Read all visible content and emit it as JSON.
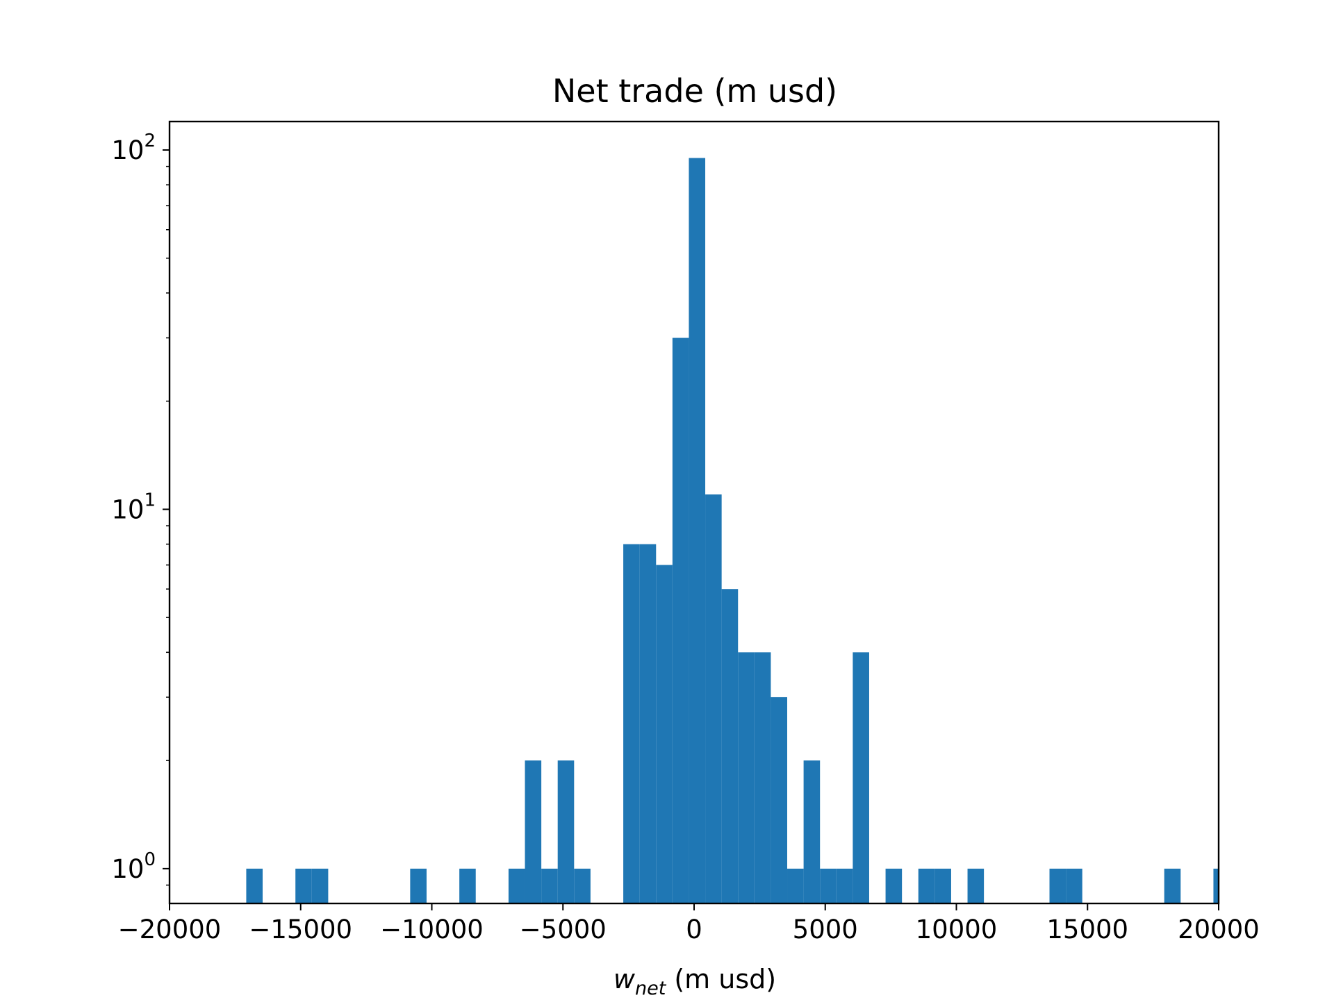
{
  "chart_data": {
    "type": "bar",
    "title": "Net trade (m usd)",
    "xlabel": {
      "symbol": "w",
      "subscript": "net",
      "rest": " (m usd)"
    },
    "ylabel": "",
    "yscale": "log",
    "xlim": [
      -20000,
      20000
    ],
    "ylim": [
      0.8,
      120
    ],
    "x_ticks": [
      {
        "value": -20000,
        "label": "−20000"
      },
      {
        "value": -15000,
        "label": "−15000"
      },
      {
        "value": -10000,
        "label": "−10000"
      },
      {
        "value": -5000,
        "label": "−5000"
      },
      {
        "value": 0,
        "label": "0"
      },
      {
        "value": 5000,
        "label": "5000"
      },
      {
        "value": 10000,
        "label": "10000"
      },
      {
        "value": 15000,
        "label": "15000"
      },
      {
        "value": 20000,
        "label": "20000"
      }
    ],
    "y_ticks": [
      {
        "value": 1,
        "base": "10",
        "exponent": "0"
      },
      {
        "value": 10,
        "base": "10",
        "exponent": "1"
      },
      {
        "value": 100,
        "base": "10",
        "exponent": "2"
      }
    ],
    "bin_width": 625,
    "bars": [
      {
        "x0": -17075,
        "count": 1
      },
      {
        "x0": -15200,
        "count": 1
      },
      {
        "x0": -14575,
        "count": 1
      },
      {
        "x0": -10825,
        "count": 1
      },
      {
        "x0": -8950,
        "count": 1
      },
      {
        "x0": -7075,
        "count": 1
      },
      {
        "x0": -6450,
        "count": 2
      },
      {
        "x0": -5825,
        "count": 1
      },
      {
        "x0": -5200,
        "count": 2
      },
      {
        "x0": -4575,
        "count": 1
      },
      {
        "x0": -2700,
        "count": 8
      },
      {
        "x0": -2075,
        "count": 8
      },
      {
        "x0": -1450,
        "count": 7
      },
      {
        "x0": -825,
        "count": 30
      },
      {
        "x0": -200,
        "count": 95
      },
      {
        "x0": 425,
        "count": 11
      },
      {
        "x0": 1050,
        "count": 6
      },
      {
        "x0": 1675,
        "count": 4
      },
      {
        "x0": 2300,
        "count": 4
      },
      {
        "x0": 2925,
        "count": 3
      },
      {
        "x0": 3550,
        "count": 1
      },
      {
        "x0": 4175,
        "count": 2
      },
      {
        "x0": 4800,
        "count": 1
      },
      {
        "x0": 5425,
        "count": 1
      },
      {
        "x0": 6050,
        "count": 4
      },
      {
        "x0": 7300,
        "count": 1
      },
      {
        "x0": 8550,
        "count": 1
      },
      {
        "x0": 9175,
        "count": 1
      },
      {
        "x0": 10425,
        "count": 1
      },
      {
        "x0": 13550,
        "count": 1
      },
      {
        "x0": 14175,
        "count": 1
      },
      {
        "x0": 17925,
        "count": 1
      },
      {
        "x0": 19800,
        "count": 1
      }
    ],
    "bar_color": "#1f77b4",
    "grid": false,
    "legend": "none"
  }
}
